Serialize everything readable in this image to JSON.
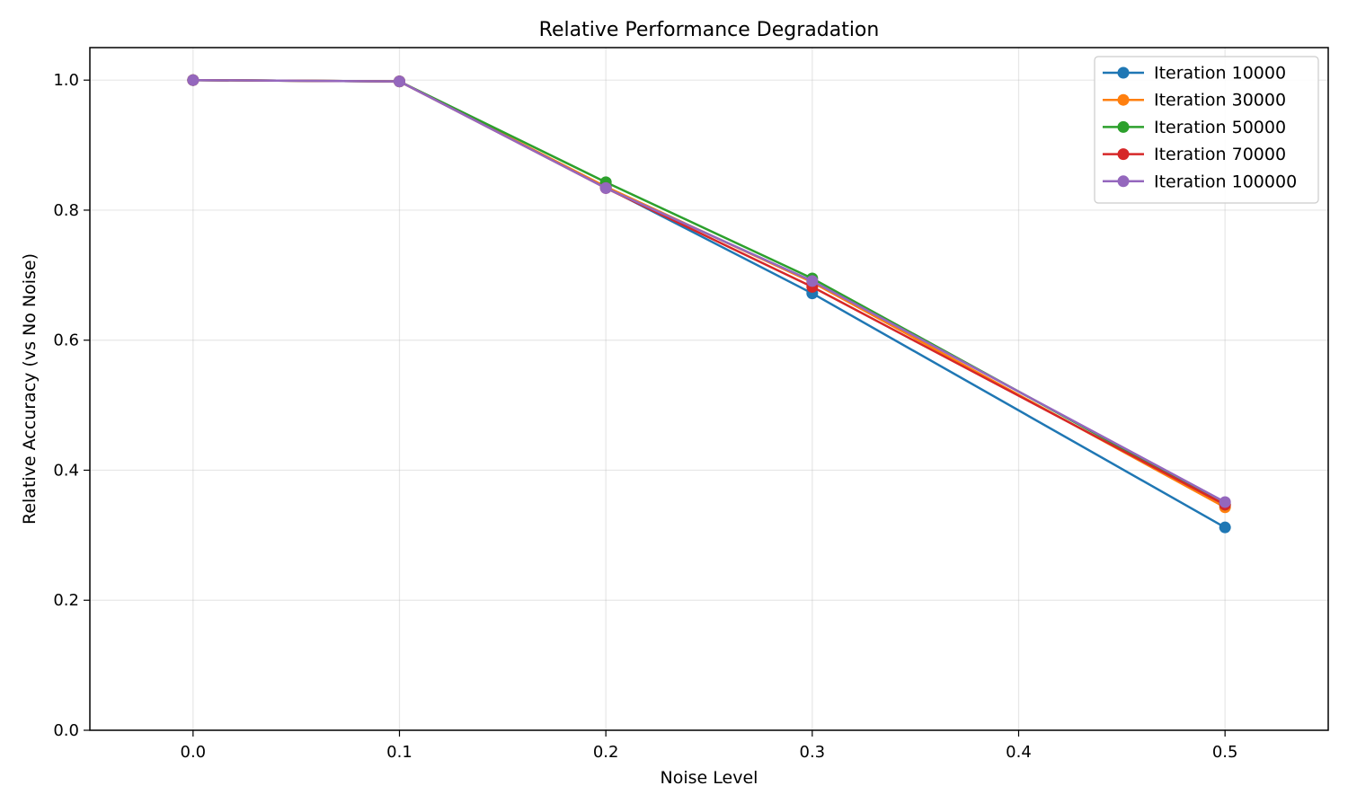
{
  "chart_data": {
    "type": "line",
    "title": "Relative Performance Degradation",
    "xlabel": "Noise Level",
    "ylabel": "Relative Accuracy (vs No Noise)",
    "xlim": [
      -0.05,
      0.55
    ],
    "ylim": [
      0.0,
      1.05
    ],
    "xticks": [
      0.0,
      0.1,
      0.2,
      0.3,
      0.4,
      0.5
    ],
    "xtick_labels": [
      "0.0",
      "0.1",
      "0.2",
      "0.3",
      "0.4",
      "0.5"
    ],
    "yticks": [
      0.0,
      0.2,
      0.4,
      0.6,
      0.8,
      1.0
    ],
    "ytick_labels": [
      "0.0",
      "0.2",
      "0.4",
      "0.6",
      "0.8",
      "1.0"
    ],
    "grid": true,
    "legend_position": "top-right",
    "x": [
      0.0,
      0.1,
      0.2,
      0.3,
      0.5
    ],
    "series": [
      {
        "name": "Iteration 10000",
        "color": "#1f77b4",
        "values": [
          1.0,
          0.998,
          0.835,
          0.672,
          0.312
        ]
      },
      {
        "name": "Iteration 30000",
        "color": "#ff7f0e",
        "values": [
          1.0,
          0.998,
          0.836,
          0.689,
          0.343
        ]
      },
      {
        "name": "Iteration 50000",
        "color": "#2ca02c",
        "values": [
          1.0,
          0.998,
          0.843,
          0.695,
          0.347
        ]
      },
      {
        "name": "Iteration 70000",
        "color": "#d62728",
        "values": [
          1.0,
          0.998,
          0.834,
          0.682,
          0.347
        ]
      },
      {
        "name": "Iteration 100000",
        "color": "#9467bd",
        "values": [
          1.0,
          0.998,
          0.834,
          0.691,
          0.351
        ]
      }
    ]
  }
}
